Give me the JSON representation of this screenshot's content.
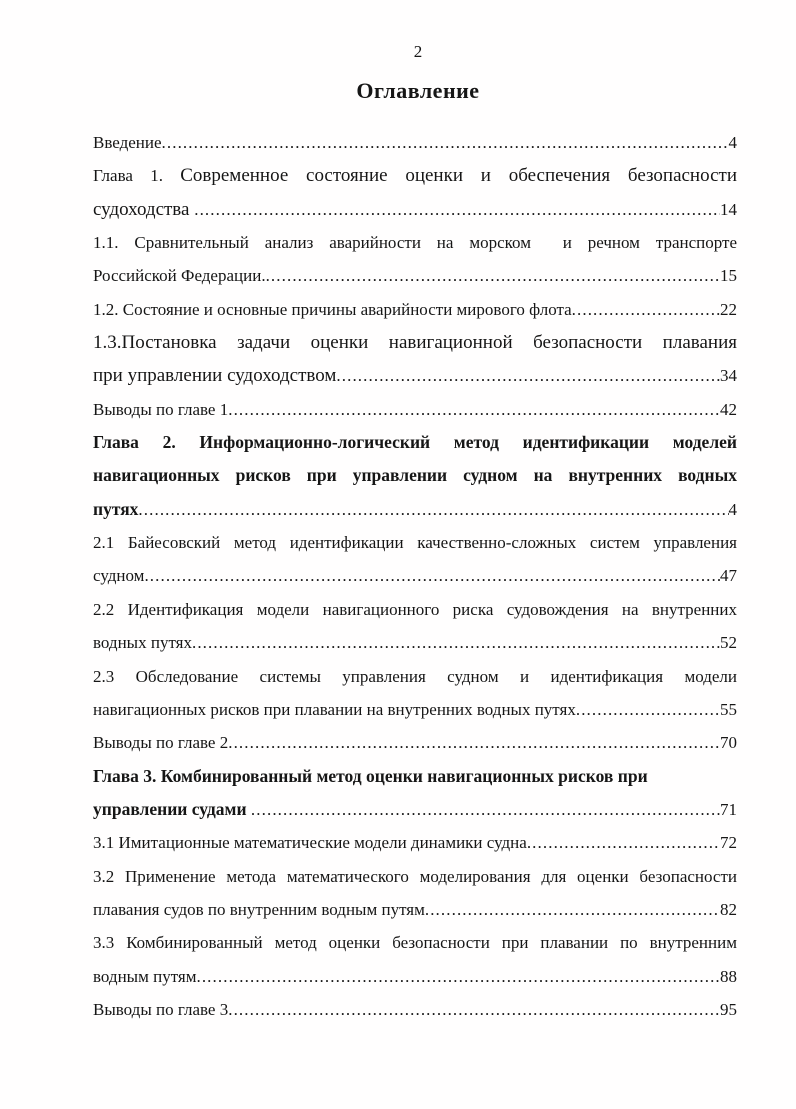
{
  "page": {
    "number": "2",
    "title": "Оглавление"
  },
  "toc": {
    "leader_dots": "........................................................................................................................................................................",
    "lines": [
      {
        "text": "Введение",
        "page": "4"
      },
      {
        "prefix": "Глава 1. ",
        "text": "Современное состояние оценки и обеспечения безопасности",
        "style": "large",
        "justify": true
      },
      {
        "text": "судоходства ",
        "style": "large",
        "page": "14"
      },
      {
        "text": "1.1. Сравнительный анализ аварийности на морском  и речном транспорте",
        "justify": true
      },
      {
        "text": "Российской Федерации.",
        "page": "15"
      },
      {
        "text": "1.2. Состояние и основные причины аварийности мирового флота",
        "page": "22"
      },
      {
        "text": "1.3.Постановка задачи оценки навигационной безопасности плавания",
        "style": "large",
        "justify": true
      },
      {
        "text": "при управлении судоходством",
        "style": "large",
        "page": "34"
      },
      {
        "text": "Выводы по главе 1",
        "page": "42"
      },
      {
        "text": "Глава 2. Информационно-логический метод идентификации моделей",
        "style": "bold",
        "justify": true
      },
      {
        "text": "навигационных рисков при управлении судном на внутренних водных",
        "style": "bold",
        "justify": true
      },
      {
        "text": "путях",
        "style": "bold",
        "page": "4"
      },
      {
        "text": "2.1 Байесовский метод идентификации качественно-сложных систем управления",
        "justify": true
      },
      {
        "text": "судном",
        "page": "47"
      },
      {
        "text": "2.2 Идентификация модели навигационного риска судовождения на внутренних",
        "justify": true
      },
      {
        "text": "водных путях",
        "page": "52"
      },
      {
        "text": "2.3 Обследование системы управления судном и идентификация модели",
        "justify": true
      },
      {
        "text": "навигационных рисков при плавании на внутренних водных путях",
        "page": "55"
      },
      {
        "text": "Выводы по главе 2",
        "page": "70"
      },
      {
        "text": "Глава 3. Комбинированный метод оценки навигационных рисков при",
        "style": "bold"
      },
      {
        "text": "управлении судами ",
        "style": "bold",
        "page": "71"
      },
      {
        "text": "3.1 Имитационные математические модели динамики судна",
        "page": "72"
      },
      {
        "text": "3.2 Применение метода математического моделирования для оценки безопасности",
        "justify": true
      },
      {
        "text": "плавания судов по внутренним водным путям",
        "page": "82"
      },
      {
        "text": "3.3 Комбинированный метод оценки безопасности при плавании по внутренним",
        "justify": true
      },
      {
        "text": "водным путям",
        "page": "88"
      },
      {
        "text": "Выводы по главе 3",
        "page": "95"
      }
    ]
  }
}
